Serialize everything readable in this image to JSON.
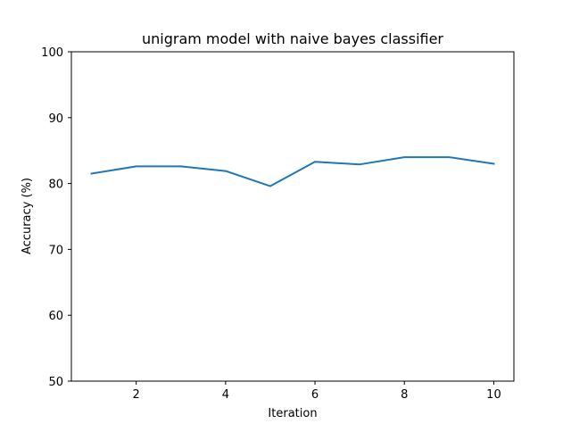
{
  "chart_data": {
    "type": "line",
    "title": "unigram model with naive bayes classifier",
    "xlabel": "Iteration",
    "ylabel": "Accuracy (%)",
    "xlim": [
      0.55,
      10.45
    ],
    "ylim": [
      50,
      100
    ],
    "xticks": [
      2,
      4,
      6,
      8,
      10
    ],
    "yticks": [
      50,
      60,
      70,
      80,
      90,
      100
    ],
    "grid": false,
    "x": [
      1,
      2,
      3,
      4,
      5,
      6,
      7,
      8,
      9,
      10
    ],
    "series": [
      {
        "values": [
          81.5,
          82.6,
          82.6,
          81.9,
          79.6,
          83.3,
          82.9,
          84.0,
          84.0,
          83.0
        ],
        "color": "#1f77b4"
      }
    ]
  }
}
